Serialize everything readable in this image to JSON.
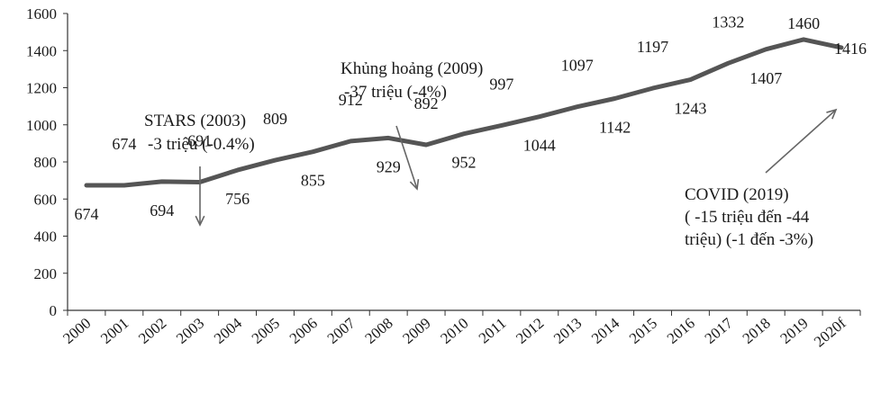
{
  "chart_data": {
    "type": "line",
    "title": "",
    "xlabel": "",
    "ylabel": "",
    "ylim": [
      0,
      1600
    ],
    "yticks": [
      0,
      200,
      400,
      600,
      800,
      1000,
      1200,
      1400,
      1600
    ],
    "grid": false,
    "categories": [
      "2000",
      "2001",
      "2002",
      "2003",
      "2004",
      "2005",
      "2006",
      "2007",
      "2008",
      "2009",
      "2010",
      "2011",
      "2012",
      "2013",
      "2014",
      "2015",
      "2016",
      "2017",
      "2018",
      "2019",
      "2020f"
    ],
    "series": [
      {
        "values": [
          674,
          674,
          694,
          691,
          756,
          809,
          855,
          912,
          929,
          892,
          952,
          997,
          1044,
          1097,
          1142,
          1197,
          1243,
          1332,
          1407,
          1460,
          1416
        ],
        "data_labels": [
          "674",
          "674",
          "694",
          "691",
          "756",
          "809",
          "855",
          "912",
          "929",
          "892",
          "952",
          "997",
          "1044",
          "1097",
          "1142",
          "1197",
          "1243",
          "1332",
          "1407",
          "1460",
          "1416"
        ],
        "color": "#555555"
      }
    ],
    "annotations": [
      {
        "lines": [
          "STARS (2003)",
          "-3 triệu (-0.4%)"
        ],
        "arrow": "down",
        "category": "2003"
      },
      {
        "lines": [
          "Khủng hoảng (2009)",
          "-37 triệu (-4%)"
        ],
        "arrow": "down",
        "category": "2009"
      },
      {
        "lines": [
          "COVID (2019)",
          "( -15 triệu đến -44",
          "triệu) (-1 đến -3%)"
        ],
        "arrow": "up",
        "category": "2020f"
      }
    ]
  }
}
